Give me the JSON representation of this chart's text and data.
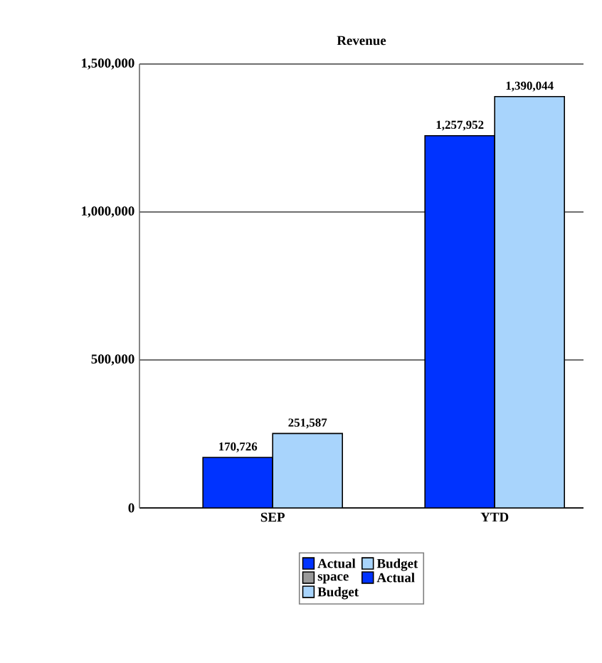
{
  "chart_data": {
    "type": "bar",
    "title": "Revenue",
    "categories": [
      "SEP",
      "YTD"
    ],
    "series": [
      {
        "name": "Actual",
        "color": "#0033ff",
        "values": [
          170726,
          1257952
        ],
        "value_labels": [
          "170,726",
          "1,257,952"
        ]
      },
      {
        "name": "Budget",
        "color": "#a8d4fc",
        "values": [
          251587,
          1390044
        ],
        "value_labels": [
          "251,587",
          "1,390,044"
        ]
      },
      {
        "name": "space",
        "color": "#999999",
        "values": [
          null,
          null
        ]
      },
      {
        "name": "Actual",
        "color": "#0033ff",
        "values": [
          null,
          null
        ]
      },
      {
        "name": "Budget",
        "color": "#a8d4fc",
        "values": [
          null,
          null
        ]
      }
    ],
    "ylim": [
      0,
      1500000
    ],
    "yticks": [
      {
        "value": 0,
        "label": "0"
      },
      {
        "value": 500000,
        "label": "500,000"
      },
      {
        "value": 1000000,
        "label": "1,000,000"
      },
      {
        "value": 1500000,
        "label": "1,500,000"
      }
    ],
    "grid": "y",
    "legend": "bottom"
  }
}
